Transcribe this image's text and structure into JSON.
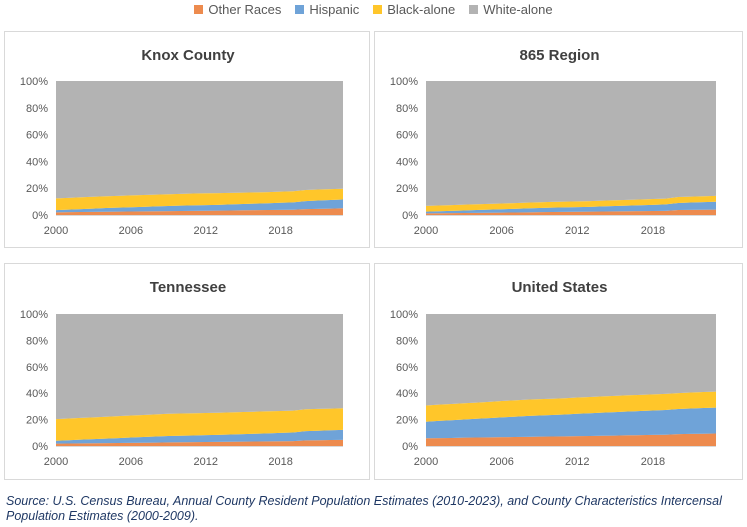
{
  "legend": [
    {
      "name": "Other Races",
      "color": "#ed8b4e"
    },
    {
      "name": "Hispanic",
      "color": "#6fa3d8"
    },
    {
      "name": "Black-alone",
      "color": "#ffc62a"
    },
    {
      "name": "White-alone",
      "color": "#b3b3b3"
    }
  ],
  "source_text": "Source: U.S. Census Bureau, Annual County Resident Population Estimates (2010-2023), and County Characteristics Intercensal Population Estimates (2000-2009).",
  "chart_data": [
    {
      "type": "area",
      "title": "Knox County",
      "x": [
        2000,
        2001,
        2002,
        2003,
        2004,
        2005,
        2006,
        2007,
        2008,
        2009,
        2010,
        2011,
        2012,
        2013,
        2014,
        2015,
        2016,
        2017,
        2018,
        2019,
        2020,
        2021,
        2022,
        2023
      ],
      "xticks": [
        "2000",
        "2006",
        "2012",
        "2018"
      ],
      "yticks": [
        "0%",
        "20%",
        "40%",
        "60%",
        "80%",
        "100%"
      ],
      "ylim": [
        0,
        100
      ],
      "stacked": true,
      "series": [
        {
          "name": "Other Races",
          "values": [
            2.0,
            2.1,
            2.2,
            2.3,
            2.4,
            2.5,
            2.6,
            2.7,
            2.8,
            2.9,
            3.0,
            3.1,
            3.2,
            3.3,
            3.4,
            3.5,
            3.6,
            3.7,
            3.8,
            3.9,
            4.4,
            4.6,
            4.8,
            5.0
          ]
        },
        {
          "name": "Hispanic",
          "values": [
            1.6,
            1.9,
            2.2,
            2.5,
            2.8,
            3.0,
            3.2,
            3.4,
            3.6,
            3.8,
            4.0,
            4.1,
            4.2,
            4.3,
            4.5,
            4.7,
            4.9,
            5.1,
            5.3,
            5.5,
            6.0,
            6.2,
            6.4,
            6.6
          ]
        },
        {
          "name": "Black-alone",
          "values": [
            8.8,
            8.8,
            8.8,
            8.8,
            8.8,
            8.8,
            8.8,
            8.8,
            8.8,
            8.8,
            8.8,
            8.8,
            8.8,
            8.7,
            8.6,
            8.5,
            8.4,
            8.3,
            8.3,
            8.3,
            8.3,
            8.2,
            8.1,
            8.0
          ]
        },
        {
          "name": "White-alone",
          "values": [
            87.6,
            87.2,
            86.8,
            86.4,
            86.0,
            85.7,
            85.4,
            85.1,
            84.8,
            84.5,
            84.2,
            84.0,
            83.8,
            83.7,
            83.5,
            83.3,
            83.1,
            82.9,
            82.6,
            82.3,
            81.3,
            81.0,
            80.7,
            80.4
          ]
        }
      ]
    },
    {
      "type": "area",
      "title": "865 Region",
      "x": [
        2000,
        2001,
        2002,
        2003,
        2004,
        2005,
        2006,
        2007,
        2008,
        2009,
        2010,
        2011,
        2012,
        2013,
        2014,
        2015,
        2016,
        2017,
        2018,
        2019,
        2020,
        2021,
        2022,
        2023
      ],
      "xticks": [
        "2000",
        "2006",
        "2012",
        "2018"
      ],
      "yticks": [
        "0%",
        "20%",
        "40%",
        "60%",
        "80%",
        "100%"
      ],
      "ylim": [
        0,
        100
      ],
      "stacked": true,
      "series": [
        {
          "name": "Other Races",
          "values": [
            1.2,
            1.3,
            1.4,
            1.5,
            1.6,
            1.7,
            1.8,
            1.9,
            2.0,
            2.1,
            2.2,
            2.3,
            2.4,
            2.5,
            2.6,
            2.7,
            2.8,
            2.9,
            3.0,
            3.1,
            3.7,
            3.8,
            3.9,
            4.0
          ]
        },
        {
          "name": "Hispanic",
          "values": [
            1.3,
            1.5,
            1.7,
            1.9,
            2.1,
            2.3,
            2.5,
            2.7,
            2.9,
            3.1,
            3.3,
            3.4,
            3.5,
            3.6,
            3.8,
            4.0,
            4.2,
            4.4,
            4.6,
            4.8,
            5.3,
            5.5,
            5.7,
            5.9
          ]
        },
        {
          "name": "Black-alone",
          "values": [
            4.3,
            4.3,
            4.3,
            4.3,
            4.3,
            4.3,
            4.3,
            4.3,
            4.3,
            4.3,
            4.3,
            4.3,
            4.3,
            4.3,
            4.3,
            4.3,
            4.3,
            4.3,
            4.3,
            4.3,
            4.4,
            4.4,
            4.4,
            4.4
          ]
        },
        {
          "name": "White-alone",
          "values": [
            93.2,
            92.9,
            92.6,
            92.3,
            92.0,
            91.7,
            91.4,
            91.1,
            90.8,
            90.5,
            90.2,
            90.0,
            89.8,
            89.6,
            89.3,
            89.0,
            88.7,
            88.4,
            88.1,
            87.8,
            86.6,
            86.3,
            86.0,
            85.7
          ]
        }
      ]
    },
    {
      "type": "area",
      "title": "Tennessee",
      "x": [
        2000,
        2001,
        2002,
        2003,
        2004,
        2005,
        2006,
        2007,
        2008,
        2009,
        2010,
        2011,
        2012,
        2013,
        2014,
        2015,
        2016,
        2017,
        2018,
        2019,
        2020,
        2021,
        2022,
        2023
      ],
      "xticks": [
        "2000",
        "2006",
        "2012",
        "2018"
      ],
      "yticks": [
        "0%",
        "20%",
        "40%",
        "60%",
        "80%",
        "100%"
      ],
      "ylim": [
        0,
        100
      ],
      "stacked": true,
      "series": [
        {
          "name": "Other Races",
          "values": [
            1.8,
            1.9,
            2.0,
            2.1,
            2.2,
            2.3,
            2.4,
            2.5,
            2.6,
            2.7,
            2.8,
            2.9,
            3.0,
            3.1,
            3.2,
            3.3,
            3.4,
            3.5,
            3.6,
            3.7,
            4.3,
            4.4,
            4.5,
            4.6
          ]
        },
        {
          "name": "Hispanic",
          "values": [
            2.2,
            2.5,
            2.8,
            3.1,
            3.4,
            3.7,
            4.0,
            4.3,
            4.6,
            4.9,
            5.0,
            5.1,
            5.2,
            5.3,
            5.5,
            5.7,
            5.9,
            6.1,
            6.3,
            6.5,
            7.0,
            7.2,
            7.4,
            7.6
          ]
        },
        {
          "name": "Black-alone",
          "values": [
            16.4,
            16.4,
            16.5,
            16.5,
            16.6,
            16.6,
            16.7,
            16.7,
            16.8,
            16.8,
            16.8,
            16.8,
            16.8,
            16.8,
            16.8,
            16.8,
            16.7,
            16.7,
            16.6,
            16.6,
            16.5,
            16.5,
            16.4,
            16.4
          ]
        },
        {
          "name": "White-alone",
          "values": [
            79.6,
            79.2,
            78.7,
            78.3,
            77.8,
            77.4,
            76.9,
            76.5,
            76.0,
            75.6,
            75.4,
            75.2,
            75.0,
            74.8,
            74.5,
            74.2,
            74.0,
            73.7,
            73.5,
            73.2,
            72.2,
            71.9,
            71.7,
            71.4
          ]
        }
      ]
    },
    {
      "type": "area",
      "title": "United States",
      "x": [
        2000,
        2001,
        2002,
        2003,
        2004,
        2005,
        2006,
        2007,
        2008,
        2009,
        2010,
        2011,
        2012,
        2013,
        2014,
        2015,
        2016,
        2017,
        2018,
        2019,
        2020,
        2021,
        2022,
        2023
      ],
      "xticks": [
        "2000",
        "2006",
        "2012",
        "2018"
      ],
      "yticks": [
        "0%",
        "20%",
        "40%",
        "60%",
        "80%",
        "100%"
      ],
      "ylim": [
        0,
        100
      ],
      "stacked": true,
      "series": [
        {
          "name": "Other Races",
          "values": [
            5.9,
            6.0,
            6.1,
            6.3,
            6.4,
            6.5,
            6.7,
            6.8,
            6.9,
            7.1,
            7.2,
            7.3,
            7.5,
            7.6,
            7.8,
            7.9,
            8.1,
            8.2,
            8.4,
            8.5,
            9.0,
            9.2,
            9.3,
            9.5
          ]
        },
        {
          "name": "Hispanic",
          "values": [
            12.5,
            13.0,
            13.4,
            13.8,
            14.2,
            14.6,
            15.0,
            15.4,
            15.8,
            16.0,
            16.3,
            16.6,
            16.9,
            17.2,
            17.5,
            17.8,
            18.0,
            18.3,
            18.5,
            18.8,
            19.0,
            19.2,
            19.5,
            19.6
          ]
        },
        {
          "name": "Black-alone",
          "values": [
            12.3,
            12.3,
            12.3,
            12.3,
            12.3,
            12.3,
            12.4,
            12.4,
            12.4,
            12.4,
            12.3,
            12.3,
            12.3,
            12.3,
            12.3,
            12.3,
            12.3,
            12.2,
            12.2,
            12.2,
            12.1,
            12.1,
            12.1,
            12.1
          ]
        },
        {
          "name": "White-alone",
          "values": [
            69.3,
            68.7,
            68.2,
            67.6,
            67.1,
            66.6,
            65.9,
            65.4,
            64.9,
            64.5,
            64.2,
            63.8,
            63.3,
            62.9,
            62.4,
            62.0,
            61.6,
            61.3,
            60.9,
            60.5,
            59.9,
            59.5,
            59.1,
            58.8
          ]
        }
      ]
    }
  ]
}
